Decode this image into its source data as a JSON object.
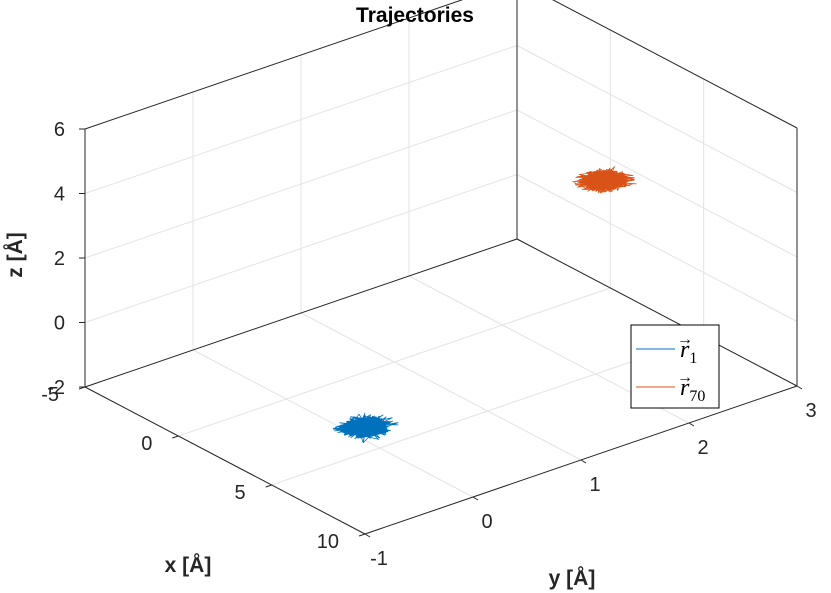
{
  "chart_data": {
    "type": "line",
    "title": "Trajectories",
    "xlabel": "x [Å]",
    "ylabel": "y [Å]",
    "zlabel": "z [Å]",
    "xlim": [
      -5,
      10
    ],
    "ylim": [
      -1,
      3
    ],
    "zlim": [
      -2,
      6
    ],
    "xticks": [
      "-5",
      "0",
      "5",
      "10"
    ],
    "yticks": [
      "-1",
      "0",
      "1",
      "2",
      "3"
    ],
    "zticks": [
      "-2",
      "0",
      "2",
      "4",
      "6"
    ],
    "grid": true,
    "legend_position": "right",
    "series": [
      {
        "name": "r1",
        "subscript": "1",
        "color": "#0072BD",
        "center": {
          "x": 7.4,
          "y": -0.55,
          "z": 0.0
        },
        "spread": {
          "x": 1.2,
          "y": 0.3,
          "z": 0.1
        }
      },
      {
        "name": "r70",
        "subscript": "70",
        "color": "#D95319",
        "center": {
          "x": 2.0,
          "y": 2.6,
          "z": 2.4
        },
        "spread": {
          "x": 1.2,
          "y": 0.3,
          "z": 0.1
        }
      }
    ]
  }
}
